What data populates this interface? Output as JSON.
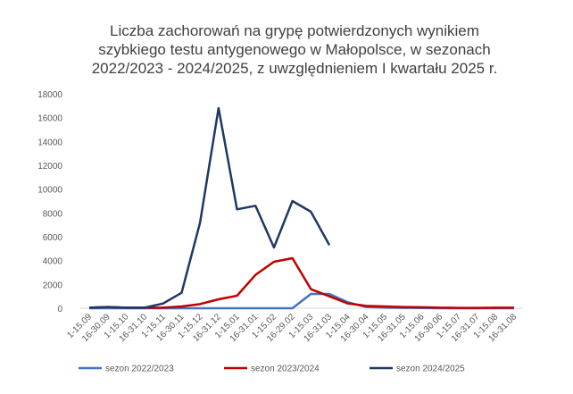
{
  "chart_data": {
    "type": "line",
    "title": [
      "Liczba zachorowań na grypę potwierdzonych wynikiem",
      "szybkiego testu antygenowego w Małopolsce, w sezonach",
      "2022/2023 - 2024/2025, z uwzględnieniem I kwartału 2025 r."
    ],
    "categories": [
      "1-15.09",
      "16-30.09",
      "1-15.10",
      "16-31.10",
      "1-15.11",
      "16-30.11",
      "1-15.12",
      "16-31.12",
      "1-15.01",
      "16-31.01",
      "1-15.02",
      "16-29.02",
      "1-15.03",
      "16-31.03",
      "1-15.04",
      "16-30.04",
      "1-15.05",
      "16-31.05",
      "1-15.06",
      "16-30.06",
      "1-15.07",
      "16-31.07",
      "1-15.08",
      "16-31.08"
    ],
    "series": [
      {
        "name": "sezon 2022/2023",
        "color": "#4472c4",
        "values": [
          0,
          0,
          0,
          0,
          0,
          0,
          0,
          0,
          0,
          0,
          0,
          0,
          1200,
          1200,
          500,
          100,
          50,
          30,
          20,
          0,
          0,
          0,
          0,
          0
        ]
      },
      {
        "name": "sezon 2023/2024",
        "color": "#c00000",
        "values": [
          50,
          100,
          50,
          50,
          50,
          150,
          350,
          750,
          1050,
          2800,
          3900,
          4200,
          1600,
          1000,
          400,
          200,
          150,
          100,
          80,
          50,
          30,
          30,
          50,
          50
        ]
      },
      {
        "name": "sezon 2024/2025",
        "color": "#1f3864",
        "values": [
          50,
          100,
          50,
          50,
          400,
          1300,
          7200,
          16800,
          8300,
          8600,
          5100,
          9000,
          8100,
          5300,
          null,
          null,
          null,
          null,
          null,
          null,
          null,
          null,
          null,
          null
        ]
      }
    ],
    "ylim": [
      0,
      18000
    ],
    "yticks": [
      0,
      2000,
      4000,
      6000,
      8000,
      10000,
      12000,
      14000,
      16000,
      18000
    ],
    "grid": false,
    "legend": "bottom"
  }
}
